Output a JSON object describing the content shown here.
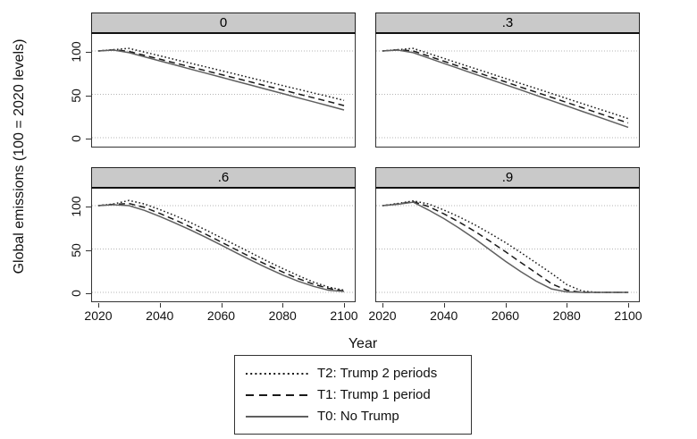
{
  "figure": {
    "ylabel": "Global emissions (100 = 2020 levels)",
    "xlabel": "Year"
  },
  "colors": {
    "panel_header_bg": "#c9c9c9",
    "gridline": "#b5b5b5",
    "line_dark": "#1a1a1a",
    "line_gray": "#5f5f5f",
    "border": "#333333"
  },
  "chart_data": {
    "type": "line",
    "x": [
      2020,
      2025,
      2030,
      2035,
      2040,
      2045,
      2050,
      2055,
      2060,
      2065,
      2070,
      2075,
      2080,
      2085,
      2090,
      2095,
      2100
    ],
    "xticks": [
      2020,
      2040,
      2060,
      2080,
      2100
    ],
    "yticks": [
      0,
      50,
      100
    ],
    "ylim": [
      -9,
      122
    ],
    "xlabel": "Year",
    "ylabel": "Global emissions (100 = 2020 levels)",
    "grid": true,
    "panels": [
      {
        "title": "0",
        "series": [
          {
            "name": "T2: Trump 2 periods",
            "dash": "dotted",
            "color": "#1a1a1a",
            "values": [
              100,
              101.5,
              103,
              98.7,
              94.4,
              90.1,
              85.9,
              81.6,
              77.3,
              73,
              68.7,
              64.4,
              60.1,
              55.9,
              51.6,
              47.3,
              43
            ]
          },
          {
            "name": "T1: Trump 1 period",
            "dash": "dashed",
            "color": "#1a1a1a",
            "values": [
              100,
              101.3,
              99.5,
              95,
              90.6,
              86.1,
              81.7,
              77.2,
              72.8,
              68.3,
              63.9,
              59.4,
              55,
              50.5,
              46.1,
              41.6,
              37
            ]
          },
          {
            "name": "T0: No Trump",
            "dash": "solid",
            "color": "#5f5f5f",
            "values": [
              100,
              101,
              98,
              93.3,
              88.6,
              83.9,
              79.1,
              74.4,
              69.7,
              65,
              60.3,
              55.6,
              50.9,
              46.1,
              41.4,
              36.7,
              32
            ]
          }
        ]
      },
      {
        "title": ".3",
        "series": [
          {
            "name": "T2: Trump 2 periods",
            "dash": "dotted",
            "color": "#1a1a1a",
            "values": [
              100,
              101.5,
              103,
              97.2,
              91.4,
              85.6,
              79.9,
              74.1,
              68.3,
              62.5,
              56.8,
              51,
              45.2,
              39.4,
              33.6,
              27.9,
              22
            ]
          },
          {
            "name": "T1: Trump 1 period",
            "dash": "dashed",
            "color": "#1a1a1a",
            "values": [
              100,
              101.3,
              100,
              94.1,
              88.1,
              82.2,
              76.3,
              70.3,
              64.4,
              58.4,
              52.5,
              46.6,
              40.6,
              34.7,
              28.7,
              22.8,
              17
            ]
          },
          {
            "name": "T0: No Trump",
            "dash": "solid",
            "color": "#5f5f5f",
            "values": [
              100,
              101,
              98,
              91.9,
              85.7,
              79.6,
              73.4,
              67.3,
              61.1,
              55,
              48.9,
              42.7,
              36.6,
              30.4,
              24.3,
              18.1,
              12
            ]
          }
        ]
      },
      {
        "title": ".6",
        "series": [
          {
            "name": "T2: Trump 2 periods",
            "dash": "dotted",
            "color": "#1a1a1a",
            "values": [
              100,
              102,
              106,
              102,
              95.5,
              88.5,
              80.5,
              72,
              63,
              54,
              45,
              36,
              27.5,
              19.5,
              12,
              6,
              2.5
            ]
          },
          {
            "name": "T1: Trump 1 period",
            "dash": "dashed",
            "color": "#1a1a1a",
            "values": [
              100,
              101.5,
              102.5,
              98,
              91,
              83.5,
              75.5,
              67,
              58,
              49,
              40,
              31.5,
              23.5,
              16,
              9.5,
              4.5,
              1.5
            ]
          },
          {
            "name": "T0: No Trump",
            "dash": "solid",
            "color": "#5f5f5f",
            "values": [
              100,
              101,
              100,
              94.5,
              87.5,
              80,
              72,
              63.5,
              54.5,
              45.5,
              36.5,
              28,
              20,
              13,
              7,
              2.5,
              1
            ]
          }
        ]
      },
      {
        "title": ".9",
        "series": [
          {
            "name": "T2: Trump 2 periods",
            "dash": "dotted",
            "color": "#1a1a1a",
            "values": [
              100,
              102.5,
              105.5,
              102,
              95,
              87,
              78,
              68,
              57.5,
              46,
              34,
              22,
              9,
              1.5,
              0,
              0,
              0
            ]
          },
          {
            "name": "T1: Trump 1 period",
            "dash": "dashed",
            "color": "#1a1a1a",
            "values": [
              100,
              102,
              104.5,
              99,
              90.5,
              81,
              70.5,
              59,
              47,
              34.5,
              22.5,
              10,
              2.5,
              0,
              0,
              0,
              0
            ]
          },
          {
            "name": "T0: No Trump",
            "dash": "solid",
            "color": "#5f5f5f",
            "values": [
              100,
              101.5,
              104,
              95,
              85,
              74,
              62,
              49,
              36,
              24,
              13,
              4,
              0.5,
              0,
              0,
              0,
              0
            ]
          }
        ]
      }
    ],
    "legend": {
      "position": "bottom",
      "entries": [
        {
          "label": "T2: Trump 2 periods",
          "dash": "dotted",
          "color": "#1a1a1a"
        },
        {
          "label": "T1: Trump 1 period",
          "dash": "dashed",
          "color": "#1a1a1a"
        },
        {
          "label": "T0: No Trump",
          "dash": "solid",
          "color": "#5f5f5f"
        }
      ]
    }
  }
}
